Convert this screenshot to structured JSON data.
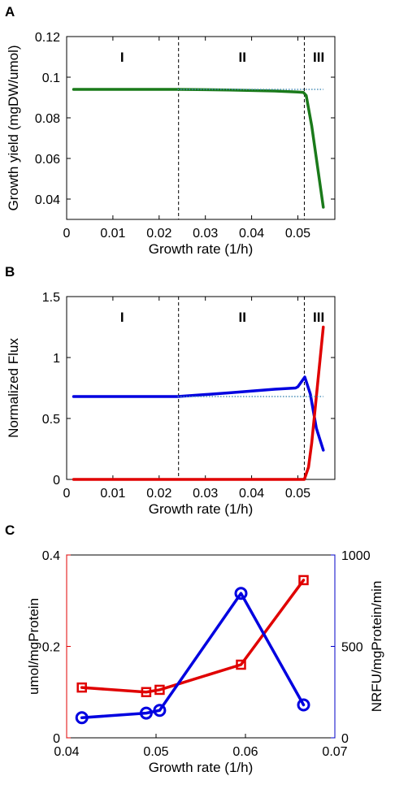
{
  "chart_data": [
    {
      "panel": "A",
      "type": "line",
      "xlabel": "Growth rate (1/h)",
      "ylabel": "Growth yield (mgDW/umol)",
      "xlim": [
        0,
        0.058
      ],
      "ylim": [
        0.03,
        0.12
      ],
      "xticks": [
        0,
        0.01,
        0.02,
        0.03,
        0.04,
        0.05
      ],
      "xtick_labels": [
        "0",
        "0.01",
        "0.02",
        "0.03",
        "0.04",
        "0.05"
      ],
      "yticks": [
        0.04,
        0.06,
        0.08,
        0.1,
        0.12
      ],
      "ytick_labels": [
        "0.04",
        "0.06",
        "0.08",
        "0.1",
        "0.12"
      ],
      "regions": [
        {
          "label": "I",
          "x": 0.012
        },
        {
          "label": "II",
          "x": 0.038
        },
        {
          "label": "III",
          "x": 0.0545
        }
      ],
      "boundaries": [
        0.0242,
        0.0514
      ],
      "series": [
        {
          "color": "#1a7a1a",
          "style": "solid",
          "x": [
            0.0015,
            0.024,
            0.035,
            0.045,
            0.05,
            0.0512,
            0.0518,
            0.053,
            0.0555
          ],
          "y": [
            0.094,
            0.094,
            0.0937,
            0.0932,
            0.0927,
            0.0925,
            0.091,
            0.076,
            0.036
          ]
        },
        {
          "color": "#4a8fb8",
          "style": "dotted",
          "x": [
            0.024,
            0.0555
          ],
          "y": [
            0.094,
            0.094
          ]
        }
      ]
    },
    {
      "panel": "B",
      "type": "line",
      "xlabel": "Growth rate (1/h)",
      "ylabel": "Normalized Flux",
      "xlim": [
        0,
        0.058
      ],
      "ylim": [
        0,
        1.5
      ],
      "xticks": [
        0,
        0.01,
        0.02,
        0.03,
        0.04,
        0.05
      ],
      "xtick_labels": [
        "0",
        "0.01",
        "0.02",
        "0.03",
        "0.04",
        "0.05"
      ],
      "yticks": [
        0,
        0.5,
        1,
        1.5
      ],
      "ytick_labels": [
        "0",
        "0.5",
        "1",
        "1.5"
      ],
      "regions": [
        {
          "label": "I",
          "x": 0.012
        },
        {
          "label": "II",
          "x": 0.038
        },
        {
          "label": "III",
          "x": 0.0545
        }
      ],
      "boundaries": [
        0.0242,
        0.0514
      ],
      "series": [
        {
          "color": "#0000e0",
          "style": "solid",
          "x": [
            0.0015,
            0.024,
            0.035,
            0.045,
            0.0495,
            0.05,
            0.0515,
            0.0527,
            0.054,
            0.0555
          ],
          "y": [
            0.68,
            0.68,
            0.71,
            0.74,
            0.75,
            0.76,
            0.84,
            0.7,
            0.42,
            0.24
          ]
        },
        {
          "color": "#e00000",
          "style": "solid",
          "x": [
            0.0015,
            0.0514,
            0.0523,
            0.053,
            0.0555
          ],
          "y": [
            0,
            0,
            0.1,
            0.3,
            1.25
          ]
        },
        {
          "color": "#4a8fb8",
          "style": "dotted",
          "x": [
            0.024,
            0.0555
          ],
          "y": [
            0.68,
            0.68
          ]
        }
      ]
    },
    {
      "panel": "C",
      "type": "line",
      "xlabel": "Growth rate (1/h)",
      "ylabel_left": "umol/mgProtein",
      "ylabel_right": "NRFU/mgProtein/min",
      "xlim": [
        0.04,
        0.07
      ],
      "ylim_left": [
        0,
        0.4
      ],
      "ylim_right": [
        0,
        1000
      ],
      "xticks": [
        0.04,
        0.05,
        0.06,
        0.07
      ],
      "xtick_labels": [
        "0.04",
        "0.05",
        "0.06",
        "0.07"
      ],
      "yticks_left": [
        0,
        0.2,
        0.4
      ],
      "ytick_labels_left": [
        "0",
        "0.2",
        "0.4"
      ],
      "yticks_right": [
        0,
        500,
        1000
      ],
      "ytick_labels_right": [
        "0",
        "500",
        "1000"
      ],
      "left_color": "#e00000",
      "right_color": "#0000c8",
      "series": [
        {
          "axis": "left",
          "color": "#e00000",
          "marker": "square",
          "x": [
            0.0417,
            0.0489,
            0.0504,
            0.0595,
            0.0665
          ],
          "y": [
            0.11,
            0.1,
            0.105,
            0.16,
            0.345
          ]
        },
        {
          "axis": "right",
          "color": "#0000e0",
          "marker": "circle",
          "x": [
            0.0417,
            0.0489,
            0.0504,
            0.0595,
            0.0665
          ],
          "y": [
            110,
            135,
            150,
            790,
            180
          ]
        }
      ]
    }
  ]
}
